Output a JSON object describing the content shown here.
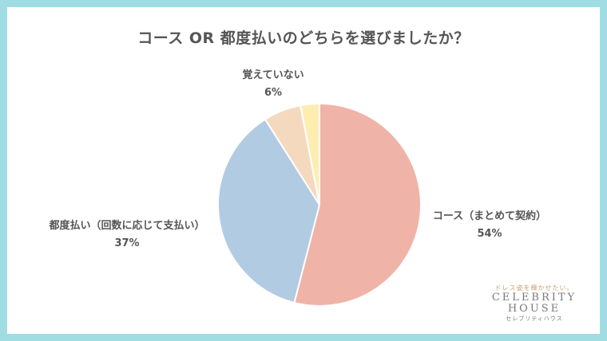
{
  "chart_data": {
    "type": "pie",
    "title": "コース OR 都度払いのどちらを選びましたか？",
    "slices": [
      {
        "label": "コース（まとめて契約）",
        "value": 54,
        "value_label": "54%",
        "color": "#f0b3a8"
      },
      {
        "label": "都度払い（回数に応じて支払い）",
        "value": 37,
        "value_label": "37%",
        "color": "#b1cbe2"
      },
      {
        "label": "覚えていない",
        "value": 6,
        "value_label": "6%",
        "color": "#f5d9bf"
      },
      {
        "label": "",
        "value": 3,
        "value_label": "",
        "color": "#fdedb0"
      }
    ]
  },
  "logo": {
    "tagline": "ドレス姿を輝かせたい。",
    "brand_line1": "CELEBRITY",
    "brand_line2": "HOUSE",
    "brand_kana": "セレブリティハウス"
  },
  "colors": {
    "frame": "#9fdde3",
    "background": "#ffffff",
    "text": "#555555"
  }
}
